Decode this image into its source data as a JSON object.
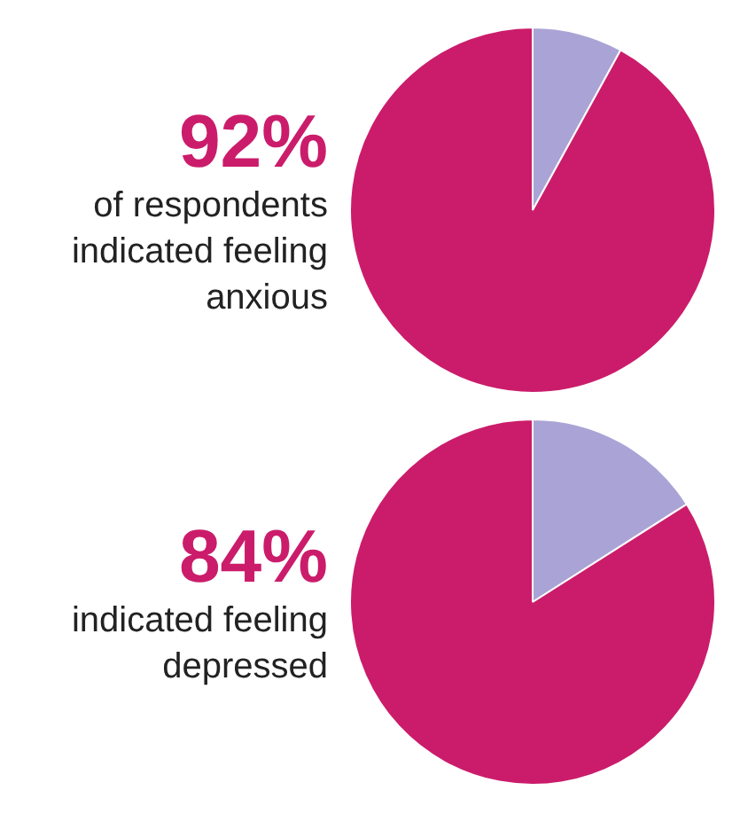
{
  "chart_data": [
    {
      "type": "pie",
      "categories": [
        null,
        null
      ],
      "values": [
        8,
        92
      ],
      "colors": [
        "#aaa4d6",
        "#cb1c6b"
      ],
      "value_labels": [
        null,
        "92%"
      ],
      "annotations": [
        "of respondents indicated feeling anxious"
      ]
    },
    {
      "type": "pie",
      "categories": [
        null,
        null
      ],
      "values": [
        16,
        84
      ],
      "colors": [
        "#aaa4d6",
        "#cb1c6b"
      ],
      "value_labels": [
        null,
        "84%"
      ],
      "annotations": [
        "indicated feeling depressed"
      ]
    }
  ]
}
